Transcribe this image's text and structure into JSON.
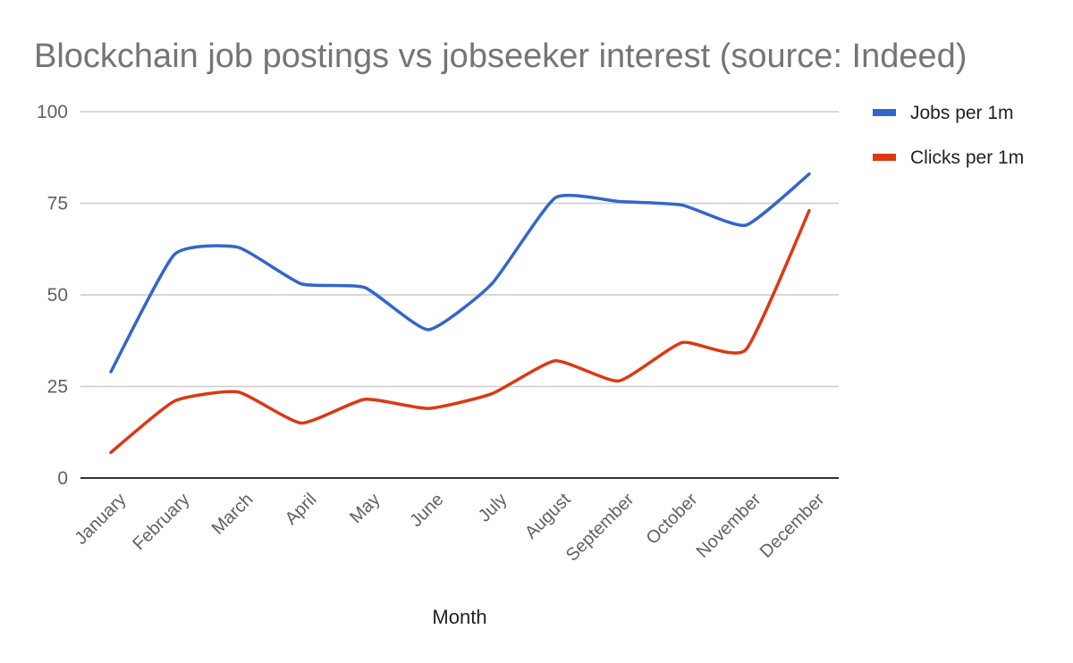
{
  "chart_data": {
    "type": "line",
    "title": "Blockchain job postings vs jobseeker interest (source: Indeed)",
    "xlabel": "Month",
    "ylabel": "",
    "categories": [
      "January",
      "February",
      "March",
      "April",
      "May",
      "June",
      "July",
      "August",
      "September",
      "October",
      "November",
      "December"
    ],
    "ylim": [
      0,
      100
    ],
    "yticks": [
      0,
      25,
      50,
      75,
      100
    ],
    "ytick_labels": [
      "0",
      "25",
      "50",
      "75",
      "100"
    ],
    "grid": true,
    "legend_position": "right",
    "smooth": true,
    "series": [
      {
        "name": "Jobs per 1m",
        "color": "#3366cc",
        "values": [
          29,
          61,
          63,
          53,
          52,
          40.5,
          53,
          76.5,
          75.5,
          74.5,
          69,
          83
        ]
      },
      {
        "name": "Clicks per 1m",
        "color": "#dc3912",
        "values": [
          7,
          21,
          23.5,
          15,
          21.5,
          19,
          23,
          32,
          26.5,
          37,
          35,
          73
        ]
      }
    ]
  }
}
